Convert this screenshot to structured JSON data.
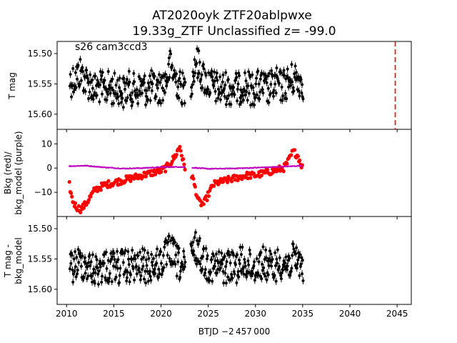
{
  "title_line1": "AT2020oyk  ZTF20ablpwxe",
  "title_line2": "19.33g_ZTF Unclassified z= -99.0",
  "sector_label": "s26 cam3ccd3",
  "xlabel": "BTJD −2 457 000",
  "colors": {
    "points": "#000000",
    "bkg": "#ff0000",
    "bkg_model": "#bf00bf",
    "marker_line": "#ff0000"
  },
  "chart_data": [
    {
      "type": "scatter",
      "panel": "top",
      "ylabel": "T mag",
      "y_inverted": true,
      "xlim": [
        2009.0,
        2046.5
      ],
      "ylim": [
        15.625,
        15.48
      ],
      "yticks": [
        15.5,
        15.55,
        15.6
      ],
      "ytick_labels": [
        "15.50",
        "15.55",
        "15.60"
      ],
      "vline_x": 2044.8,
      "series": [
        {
          "x": [
            2010.4,
            2011.0,
            2011.5,
            2012.0,
            2012.5,
            2013.0,
            2013.5,
            2014.0,
            2014.5,
            2015.0,
            2015.5,
            2016.0,
            2016.5,
            2017.0,
            2017.5,
            2018.0,
            2018.5,
            2019.0,
            2019.5,
            2020.0,
            2020.5,
            2021.0,
            2021.5,
            2022.0,
            2022.5,
            2023.2,
            2023.7,
            2024.2,
            2024.7,
            2025.2,
            2025.7,
            2026.2,
            2026.7,
            2027.2,
            2027.7,
            2028.2,
            2028.7,
            2029.2,
            2029.7,
            2030.2,
            2030.7,
            2031.2,
            2031.7,
            2032.2,
            2032.7,
            2033.2,
            2033.7,
            2034.2,
            2034.7,
            2035.1
          ],
          "y": [
            15.545,
            15.54,
            15.53,
            15.545,
            15.55,
            15.56,
            15.555,
            15.56,
            15.555,
            15.56,
            15.555,
            15.565,
            15.555,
            15.56,
            15.56,
            15.555,
            15.56,
            15.555,
            15.56,
            15.555,
            15.545,
            15.52,
            15.54,
            15.555,
            15.56,
            15.545,
            15.51,
            15.53,
            15.545,
            15.55,
            15.555,
            15.56,
            15.555,
            15.56,
            15.555,
            15.56,
            15.55,
            15.555,
            15.56,
            15.555,
            15.555,
            15.56,
            15.555,
            15.55,
            15.555,
            15.55,
            15.545,
            15.54,
            15.545,
            15.55
          ]
        }
      ]
    },
    {
      "type": "scatter",
      "panel": "middle",
      "ylabel": "Bkg (red)/\nbkg_model (purple)",
      "ylabel_lines": [
        "Bkg (red)/",
        "bkg_model (purple)"
      ],
      "xlim": [
        2009.0,
        2046.5
      ],
      "ylim": [
        -20,
        16
      ],
      "yticks": [
        10,
        0,
        -10
      ],
      "ytick_labels": [
        "10",
        "0",
        "−10"
      ],
      "series": [
        {
          "name": "bkg",
          "x": [
            2010.3,
            2010.6,
            2011.0,
            2011.5,
            2012.0,
            2012.5,
            2013.0,
            2013.5,
            2014.0,
            2015.0,
            2016.0,
            2017.0,
            2018.0,
            2019.0,
            2020.0,
            2020.5,
            2021.0,
            2021.5,
            2022.0,
            2022.5,
            2023.3,
            2023.6,
            2024.0,
            2024.5,
            2025.0,
            2025.5,
            2026.0,
            2027.0,
            2028.0,
            2029.0,
            2030.0,
            2031.0,
            2032.0,
            2033.0,
            2033.5,
            2034.0,
            2034.5,
            2035.0
          ],
          "y": [
            -7,
            -13,
            -16,
            -17,
            -15,
            -12,
            -9,
            -8,
            -7,
            -6,
            -5,
            -4,
            -3,
            -2,
            -1,
            0,
            2,
            5,
            9,
            0,
            -3,
            -8,
            -14,
            -15,
            -11,
            -7,
            -6,
            -5,
            -4,
            -3,
            -3,
            -2,
            -1,
            0,
            3,
            7,
            5,
            0
          ]
        },
        {
          "name": "bkg_model",
          "x": [
            2010.3,
            2012.0,
            2014.0,
            2016.0,
            2018.0,
            2020.0,
            2022.0,
            2023.3,
            2025.0,
            2027.0,
            2029.0,
            2031.0,
            2033.0,
            2035.0
          ],
          "y": [
            0.8,
            1.0,
            0.3,
            -0.2,
            0.0,
            0.4,
            0.5,
            0.2,
            -0.3,
            -0.2,
            0.0,
            0.3,
            0.6,
            1.0
          ]
        }
      ]
    },
    {
      "type": "scatter",
      "panel": "bottom",
      "ylabel": "T mag -\nbkg_model",
      "ylabel_lines": [
        "T mag -",
        "bkg_model"
      ],
      "y_inverted": true,
      "xlim": [
        2009.0,
        2046.5
      ],
      "ylim": [
        15.625,
        15.48
      ],
      "yticks": [
        15.5,
        15.55,
        15.6
      ],
      "ytick_labels": [
        "15.50",
        "15.55",
        "15.60"
      ],
      "xticks": [
        2010,
        2015,
        2020,
        2025,
        2030,
        2035,
        2040,
        2045
      ],
      "xtick_labels": [
        "2010",
        "2015",
        "2020",
        "2025",
        "2030",
        "2035",
        "2040",
        "2045"
      ],
      "series": [
        {
          "x": [
            2010.4,
            2011.0,
            2011.5,
            2012.0,
            2012.5,
            2013.0,
            2013.5,
            2014.0,
            2014.5,
            2015.0,
            2015.5,
            2016.0,
            2016.5,
            2017.0,
            2017.5,
            2018.0,
            2018.5,
            2019.0,
            2019.5,
            2020.0,
            2020.5,
            2021.0,
            2021.5,
            2022.0,
            2022.5,
            2023.2,
            2023.7,
            2024.2,
            2024.7,
            2025.2,
            2025.7,
            2026.2,
            2026.7,
            2027.2,
            2027.7,
            2028.2,
            2028.7,
            2029.2,
            2029.7,
            2030.2,
            2030.7,
            2031.2,
            2031.7,
            2032.2,
            2032.7,
            2033.2,
            2033.7,
            2034.2,
            2034.7,
            2035.1
          ],
          "y": [
            15.565,
            15.56,
            15.555,
            15.56,
            15.565,
            15.57,
            15.565,
            15.56,
            15.565,
            15.56,
            15.565,
            15.56,
            15.565,
            15.56,
            15.565,
            15.56,
            15.565,
            15.56,
            15.56,
            15.555,
            15.545,
            15.535,
            15.55,
            15.56,
            15.565,
            15.545,
            15.53,
            15.545,
            15.555,
            15.56,
            15.565,
            15.56,
            15.565,
            15.56,
            15.565,
            15.56,
            15.555,
            15.56,
            15.565,
            15.56,
            15.555,
            15.56,
            15.565,
            15.56,
            15.555,
            15.56,
            15.555,
            15.55,
            15.555,
            15.56
          ]
        }
      ]
    }
  ]
}
